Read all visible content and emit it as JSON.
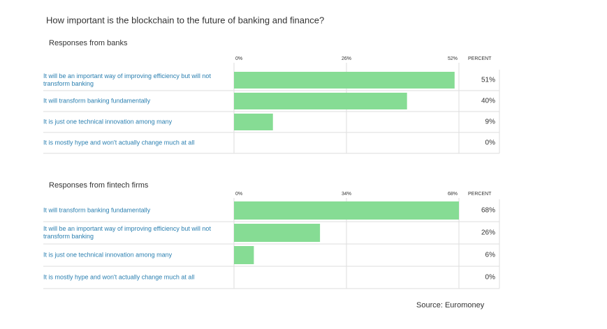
{
  "title": "How important is the blockchain to the future of banking and finance?",
  "source": "Source: Euromoney",
  "chart_data": [
    {
      "type": "bar",
      "subtitle": "Responses from banks",
      "value_axis_label": "PERCENT",
      "color": "#86dc94",
      "categories": [
        "It will be an important way of improving efficiency but will not transform banking",
        "It will transform banking fundamentally",
        "It is just one technical innovation among many",
        "It is mostly hype and won't actually change much at all"
      ],
      "values": [
        51,
        40,
        9,
        0
      ],
      "value_labels": [
        "51%",
        "40%",
        "9%",
        "0%"
      ],
      "xlim": [
        0,
        52
      ],
      "xticks": [
        {
          "value": 0,
          "label": "0%"
        },
        {
          "value": 26,
          "label": "26%"
        },
        {
          "value": 52,
          "label": "52%"
        }
      ],
      "grid": true
    },
    {
      "type": "bar",
      "subtitle": "Responses from fintech firms",
      "value_axis_label": "PERCENT",
      "color": "#86dc94",
      "categories": [
        "It will transform banking fundamentally",
        "It will be an important way of improving efficiency but will not transform banking",
        "It is just one technical innovation among many",
        "It is mostly hype and won't actually change much at all"
      ],
      "values": [
        68,
        26,
        6,
        0
      ],
      "value_labels": [
        "68%",
        "26%",
        "6%",
        "0%"
      ],
      "xlim": [
        0,
        68
      ],
      "xticks": [
        {
          "value": 0,
          "label": "0%"
        },
        {
          "value": 34,
          "label": "34%"
        },
        {
          "value": 68,
          "label": "68%"
        }
      ],
      "grid": true
    }
  ]
}
